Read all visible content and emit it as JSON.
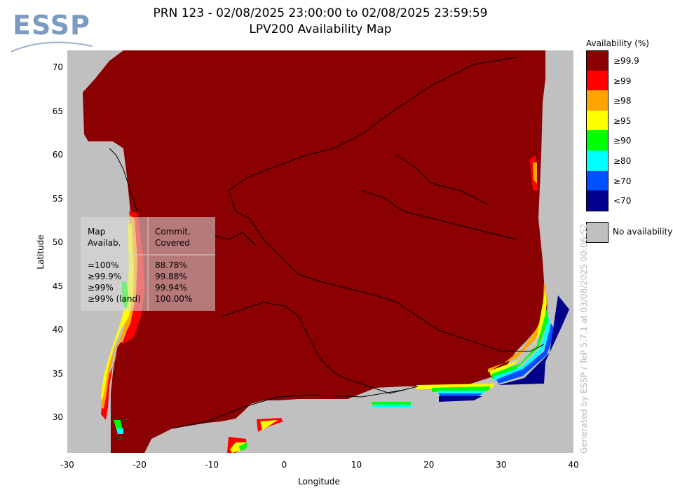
{
  "header": {
    "title_line1": "PRN 123 - 02/08/2025 23:00:00 to 02/08/2025 23:59:59",
    "title_line2": "LPV200 Availability Map",
    "logo_text": "ESSP"
  },
  "axes": {
    "xlabel": "Longitude",
    "ylabel": "Latitude",
    "xlim": [
      -30,
      40
    ],
    "ylim": [
      26,
      72
    ],
    "x_ticks": [
      "-30",
      "-20",
      "-10",
      "0",
      "10",
      "20",
      "30",
      "40"
    ],
    "y_ticks": [
      "30",
      "35",
      "40",
      "45",
      "50",
      "55",
      "60",
      "65",
      "70"
    ]
  },
  "legend": {
    "title": "Availability (%)",
    "items": [
      {
        "label": "≥99.9",
        "color": "#8b0000"
      },
      {
        "label": "≥99",
        "color": "#ff0000"
      },
      {
        "label": "≥98",
        "color": "#ffa500"
      },
      {
        "label": "≥95",
        "color": "#ffff00"
      },
      {
        "label": "≥90",
        "color": "#00ff00"
      },
      {
        "label": "≥80",
        "color": "#00ffff"
      },
      {
        "label": "≥70",
        "color": "#0050ff"
      },
      {
        "label": "<70",
        "color": "#00008b"
      }
    ],
    "no_availability": {
      "label": "No availability",
      "color": "#c0c0c0"
    }
  },
  "stats_table": {
    "col1_header": "Map\nAvailab.",
    "col2_header": "Commit.\nCovered",
    "col1_values": "=100%\n≥99.9%\n≥99%\n≥99% (land)",
    "col2_values": "88.78%\n99.88%\n99.94%\n100.00%"
  },
  "caption": "Generated by ESSP / TeP 5.7.1 at 03/08/2025 00:06:52"
}
